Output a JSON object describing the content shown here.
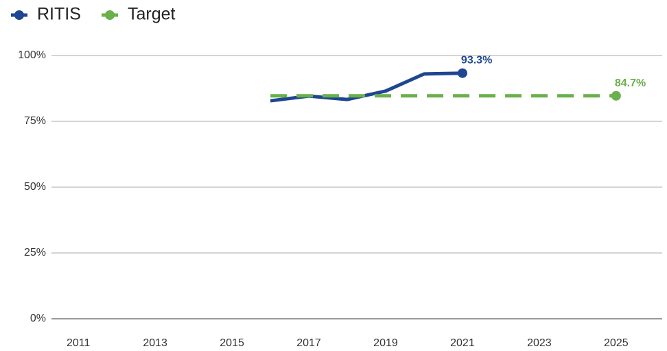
{
  "chart_data": {
    "type": "line",
    "xlim": [
      2010.3,
      2026.2
    ],
    "xticks": [
      2011,
      2013,
      2015,
      2017,
      2019,
      2021,
      2023,
      2025
    ],
    "ylim": [
      0,
      100
    ],
    "yticks": [
      {
        "value": 0,
        "label": "0%"
      },
      {
        "value": 25,
        "label": "25%"
      },
      {
        "value": 50,
        "label": "50%"
      },
      {
        "value": 75,
        "label": "75%"
      },
      {
        "value": 100,
        "label": "100%"
      }
    ],
    "grid": true,
    "legend": "top-left",
    "series": [
      {
        "name": "RITIS",
        "color": "#1f4690",
        "dashed": false,
        "x": [
          2016,
          2017,
          2018,
          2019,
          2020,
          2021
        ],
        "values": [
          82.8,
          84.6,
          83.3,
          86.5,
          93.0,
          93.3
        ],
        "value_labels": [
          null,
          null,
          null,
          null,
          null,
          "93.3%"
        ]
      },
      {
        "name": "Target",
        "color": "#6ab04c",
        "dashed": true,
        "x": [
          2016,
          2025
        ],
        "values": [
          84.7,
          84.7
        ],
        "value_labels": [
          null,
          "84.7%"
        ]
      }
    ]
  }
}
